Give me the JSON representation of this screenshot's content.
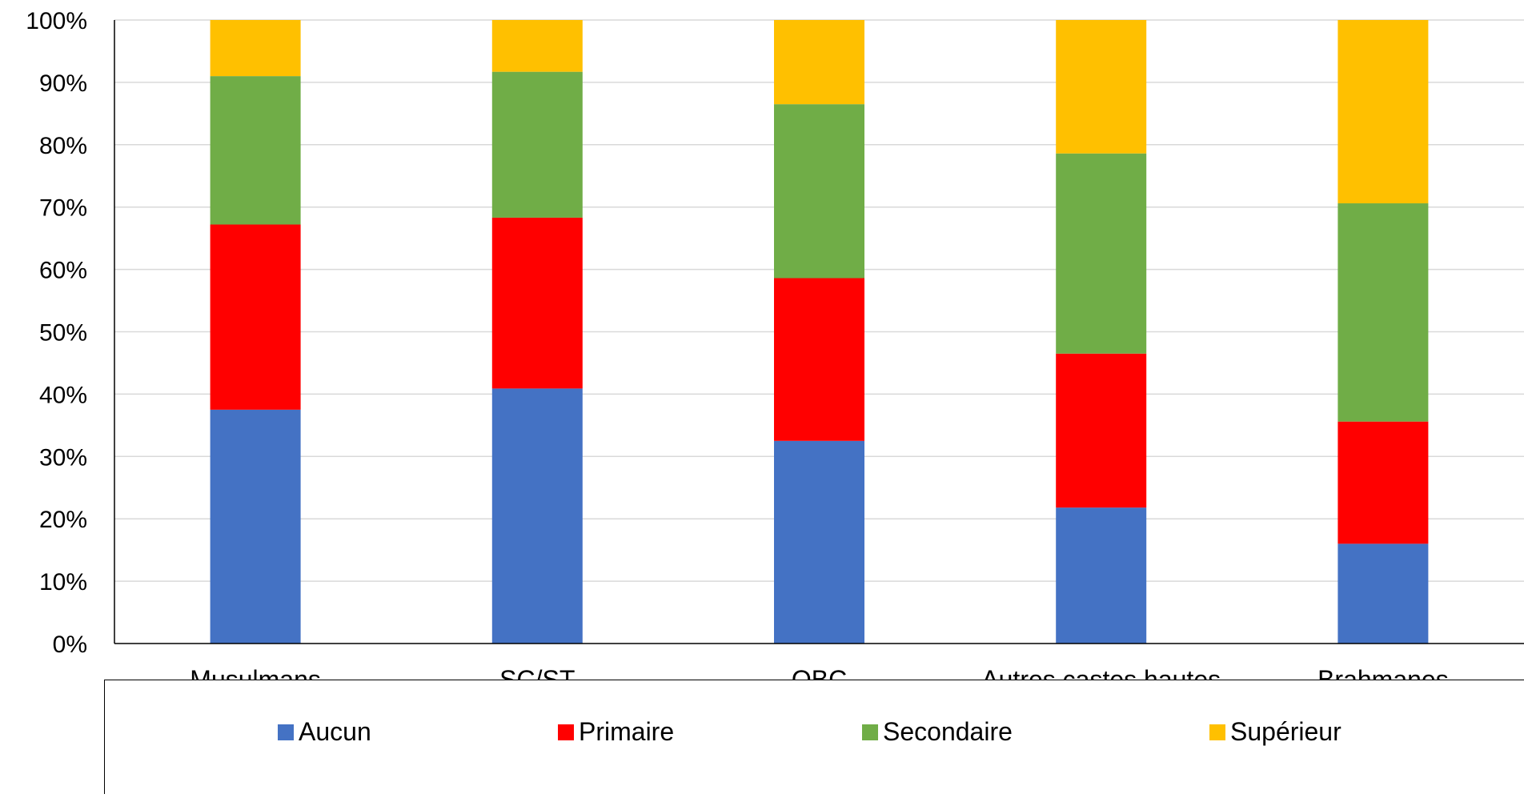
{
  "chart_data": {
    "type": "bar",
    "stacked": true,
    "title": "",
    "categories": [
      "Musulmans",
      "SC/ST",
      "OBC",
      "Autres castes hautes",
      "Brahmanes"
    ],
    "series": [
      {
        "name": "Aucun",
        "color": "#4472C4",
        "values": [
          37.5,
          40.9,
          32.5,
          21.8,
          16.0
        ]
      },
      {
        "name": "Primaire",
        "color": "#FF0000",
        "values": [
          29.7,
          27.4,
          26.1,
          24.7,
          19.6
        ]
      },
      {
        "name": "Secondaire",
        "color": "#70AD47",
        "values": [
          23.8,
          23.4,
          27.9,
          32.1,
          35.0
        ]
      },
      {
        "name": "Supérieur",
        "color": "#FFC000",
        "values": [
          9.0,
          8.3,
          13.5,
          21.4,
          29.4
        ]
      }
    ],
    "ylim": [
      0,
      100
    ],
    "yticks": [
      "0%",
      "10%",
      "20%",
      "30%",
      "40%",
      "50%",
      "60%",
      "70%",
      "80%",
      "90%",
      "100%"
    ],
    "grid": true,
    "legend_position": "bottom"
  }
}
